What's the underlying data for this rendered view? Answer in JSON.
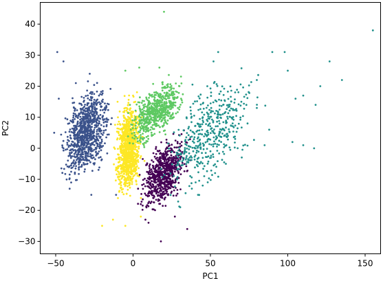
{
  "chart_data": {
    "type": "scatter",
    "title": "",
    "xlabel": "PC1",
    "ylabel": "PC2",
    "xlim": [
      -60,
      160
    ],
    "ylim": [
      -34,
      47
    ],
    "x_ticks": [
      -50,
      0,
      50,
      100,
      150
    ],
    "y_ticks": [
      -30,
      -20,
      -10,
      0,
      10,
      20,
      30,
      40
    ],
    "grid": false,
    "legend": "none",
    "series": [
      {
        "color": "#3b528b",
        "cluster": {
          "center": [
            -30,
            5
          ],
          "spread": [
            9,
            8
          ],
          "count": 900
        },
        "points": [
          [
            -49,
            31
          ],
          [
            -45,
            28
          ],
          [
            -51,
            5
          ],
          [
            -45,
            0
          ],
          [
            -40,
            -11
          ],
          [
            -27,
            -15
          ],
          [
            -11,
            -15
          ],
          [
            -48,
            16
          ],
          [
            -37,
            21
          ],
          [
            -28,
            24
          ]
        ]
      },
      {
        "color": "#fde725",
        "cluster": {
          "center": [
            -3,
            0
          ],
          "spread": [
            5,
            9
          ],
          "count": 1000
        },
        "points": [
          [
            -10,
            15
          ],
          [
            -20,
            -25
          ],
          [
            -13,
            -23
          ],
          [
            -5,
            -25
          ],
          [
            5,
            -22
          ],
          [
            0,
            17
          ],
          [
            -5,
            13
          ]
        ]
      },
      {
        "color": "#5ec962",
        "cluster": {
          "center": [
            15,
            12
          ],
          "spread": [
            10,
            5
          ],
          "count": 600
        },
        "points": [
          [
            -5,
            25
          ],
          [
            4,
            26
          ],
          [
            17,
            26
          ],
          [
            20,
            44
          ],
          [
            30,
            20
          ],
          [
            -2,
            14
          ]
        ]
      },
      {
        "color": "#440154",
        "cluster": {
          "center": [
            20,
            -8
          ],
          "spread": [
            9,
            6
          ],
          "count": 700
        },
        "points": [
          [
            18,
            -30
          ],
          [
            10,
            -24
          ],
          [
            35,
            -26
          ],
          [
            27,
            -22
          ],
          [
            5,
            -18
          ],
          [
            8,
            -23
          ]
        ]
      },
      {
        "color": "#21918c",
        "cluster": {
          "center": [
            50,
            5
          ],
          "spread": [
            18,
            10
          ],
          "count": 450
        },
        "points": [
          [
            155,
            38
          ],
          [
            127,
            28
          ],
          [
            135,
            22
          ],
          [
            100,
            25
          ],
          [
            98,
            31
          ],
          [
            90,
            31
          ],
          [
            105,
            16
          ],
          [
            110,
            17
          ],
          [
            118,
            14
          ],
          [
            103,
            2
          ],
          [
            117,
            0
          ],
          [
            121,
            20
          ],
          [
            110,
            1
          ],
          [
            85,
            1
          ],
          [
            88,
            6
          ],
          [
            80,
            13
          ],
          [
            55,
            31
          ],
          [
            52,
            28
          ],
          [
            48,
            20
          ],
          [
            45,
            10
          ],
          [
            40,
            0
          ],
          [
            60,
            -5
          ],
          [
            53,
            -8
          ],
          [
            45,
            -12
          ],
          [
            38,
            -13
          ],
          [
            42,
            -15
          ],
          [
            46,
            -9
          ],
          [
            66,
            18
          ],
          [
            70,
            15
          ],
          [
            80,
            22
          ],
          [
            74,
            8
          ],
          [
            66,
            3
          ],
          [
            58,
            11
          ]
        ]
      }
    ]
  }
}
